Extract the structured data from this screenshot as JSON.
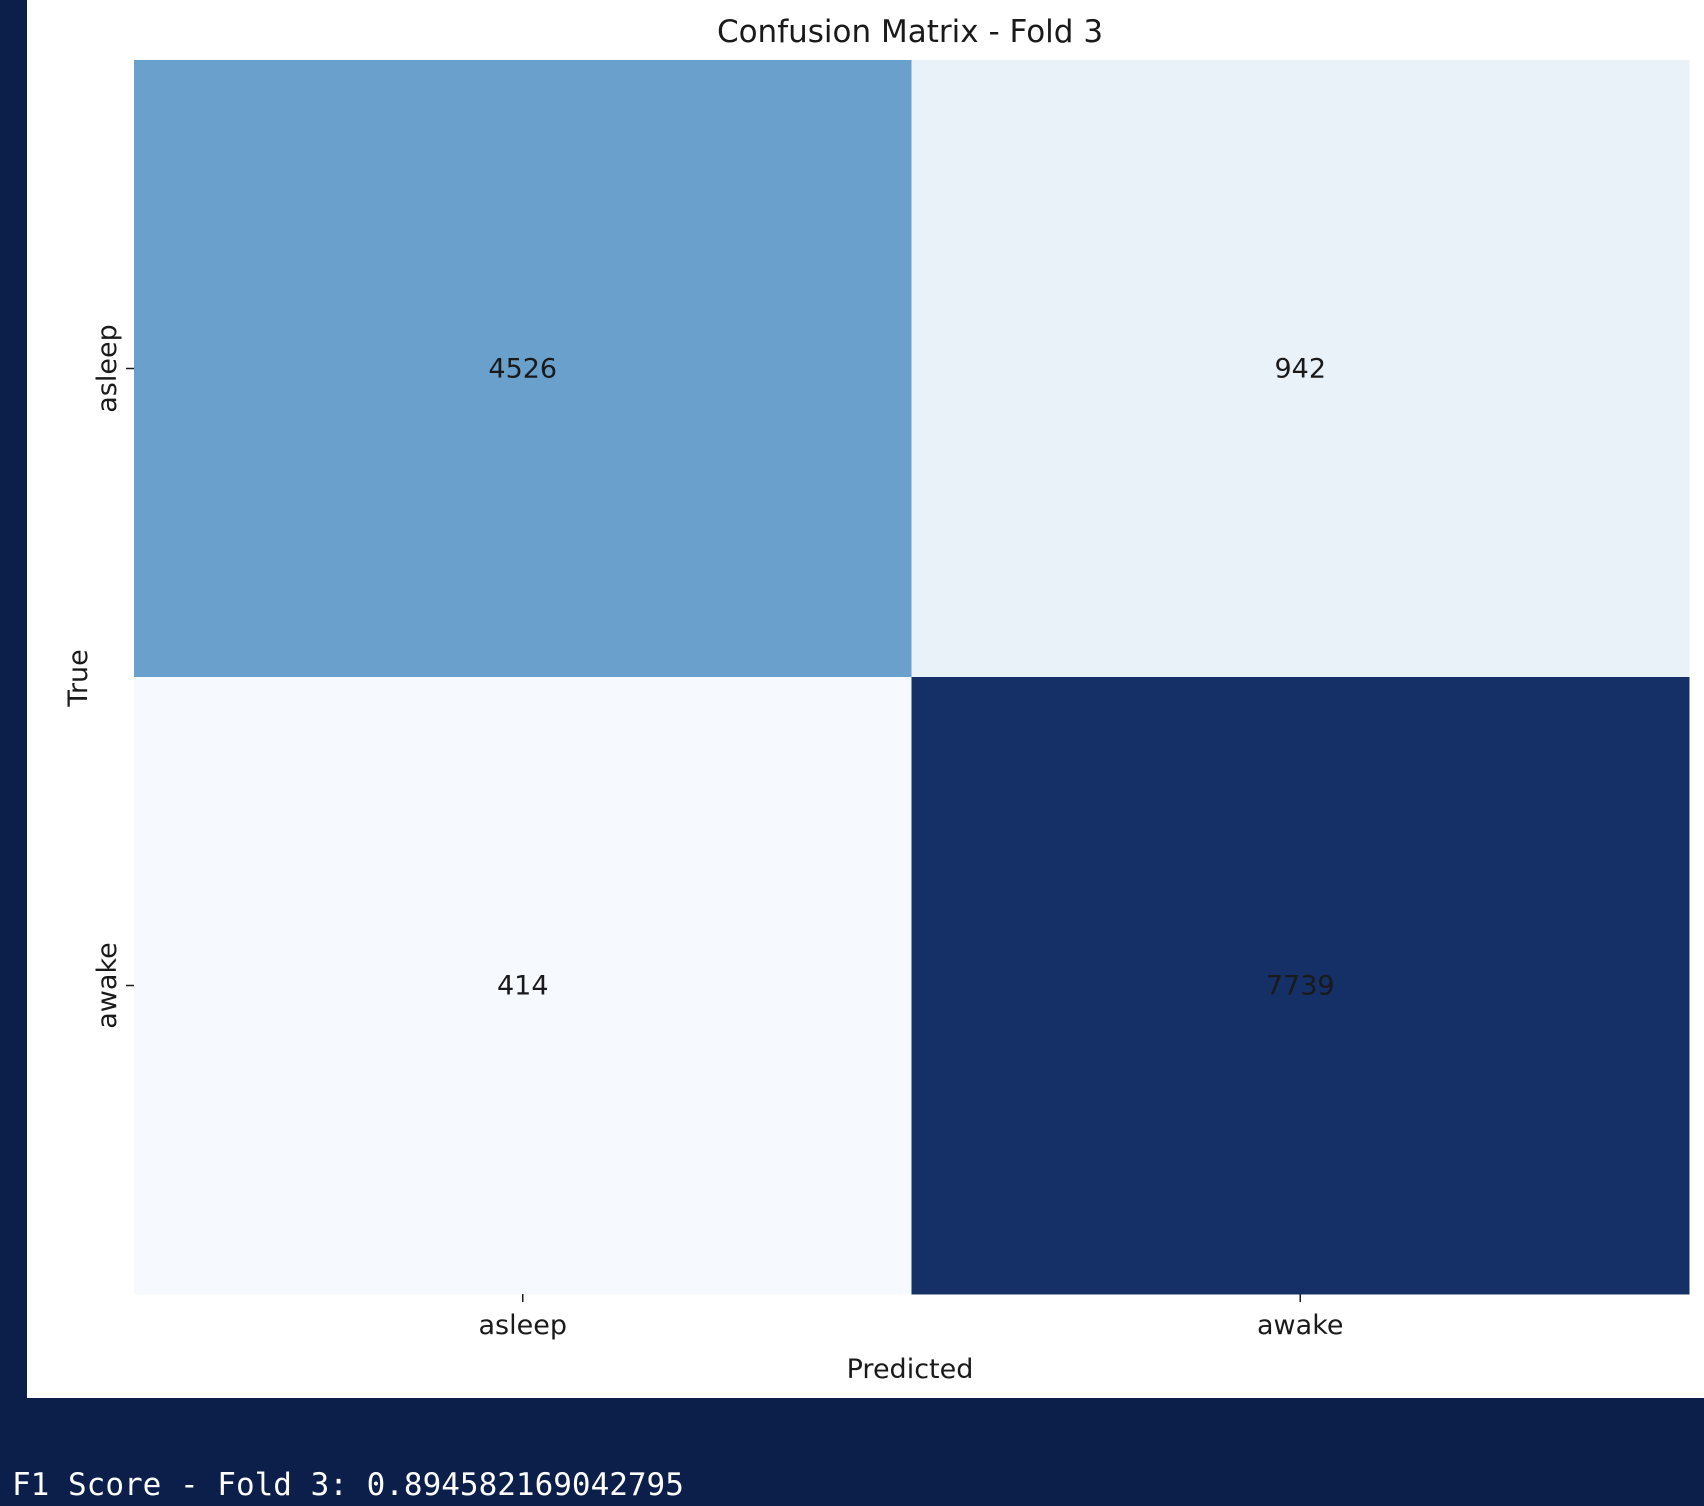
{
  "notebook": {
    "output_text": "F1 Score - Fold 3: 0.894582169042795",
    "background_color": "#0b1f4a"
  },
  "chart_data": {
    "type": "heatmap",
    "title": "Confusion Matrix - Fold 3",
    "xlabel": "Predicted",
    "ylabel": "True",
    "x_categories": [
      "asleep",
      "awake"
    ],
    "y_categories": [
      "asleep",
      "awake"
    ],
    "values": [
      [
        4526,
        942
      ],
      [
        414,
        7739
      ]
    ],
    "colormap": "Blues",
    "cell_colors": [
      [
        "#6aa0cc",
        "#e9f1f9"
      ],
      [
        "#f6f9fd",
        "#143066"
      ]
    ],
    "annotation_colors": [
      [
        "#1a1a1a",
        "#1a1a1a"
      ],
      [
        "#1a1a1a",
        "#1a1a1a"
      ]
    ],
    "grid": false,
    "legend": "none"
  }
}
